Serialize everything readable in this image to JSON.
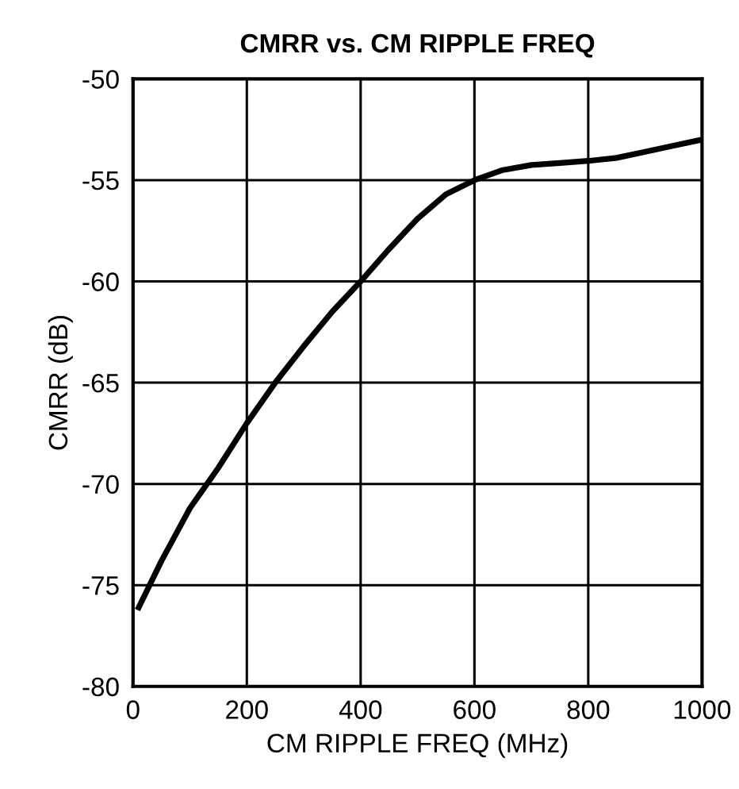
{
  "chart_data": {
    "type": "line",
    "title": "CMRR vs. CM RIPPLE FREQ",
    "xlabel": "CM RIPPLE FREQ (MHz)",
    "ylabel": "CMRR (dB)",
    "x": [
      10,
      50,
      100,
      150,
      200,
      250,
      300,
      350,
      400,
      450,
      500,
      550,
      600,
      650,
      700,
      750,
      800,
      850,
      900,
      950,
      1000
    ],
    "series": [
      {
        "color": "#000000",
        "values": [
          -76.1,
          -73.8,
          -71.2,
          -69.2,
          -67.0,
          -65.0,
          -63.2,
          -61.5,
          -60.0,
          -58.4,
          -56.9,
          -55.7,
          -55.0,
          -54.5,
          -54.25,
          -54.15,
          -54.05,
          -53.9,
          -53.6,
          -53.3,
          -53.0
        ]
      }
    ],
    "xlim": [
      0,
      1000
    ],
    "xticks": [
      0,
      200,
      400,
      600,
      800,
      1000
    ],
    "ylim": [
      -80,
      -50
    ],
    "yticks": [
      -80,
      -75,
      -70,
      -65,
      -60,
      -55,
      -50
    ],
    "grid": true,
    "legend": false,
    "marker": "none",
    "line_style": "solid"
  }
}
